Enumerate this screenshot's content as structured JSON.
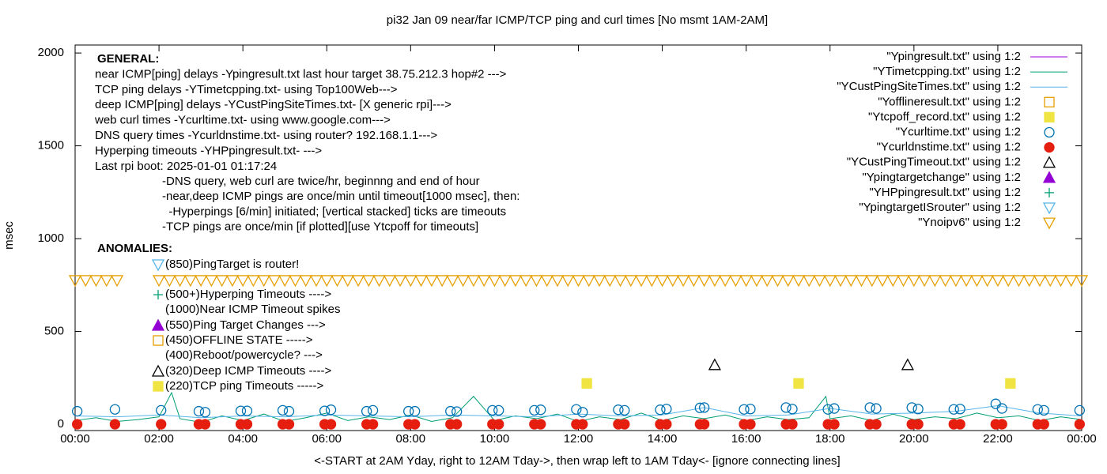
{
  "chart_data": {
    "type": "scatter",
    "title": "pi32 Jan 09  near/far ICMP/TCP ping and curl times [No msmt 1AM-2AM]",
    "xlabel": "<-START at 2AM Yday, right to 12AM Tday->, then wrap left to 1AM Tday<- [ignore connecting lines]",
    "ylabel": "msec",
    "xlim": [
      0,
      24
    ],
    "ylim": [
      -34,
      2043
    ],
    "xticks": [
      {
        "value": 0,
        "label": "00:00"
      },
      {
        "value": 2,
        "label": "02:00"
      },
      {
        "value": 4,
        "label": "04:00"
      },
      {
        "value": 6,
        "label": "06:00"
      },
      {
        "value": 8,
        "label": "08:00"
      },
      {
        "value": 10,
        "label": "10:00"
      },
      {
        "value": 12,
        "label": "12:00"
      },
      {
        "value": 14,
        "label": "14:00"
      },
      {
        "value": 16,
        "label": "16:00"
      },
      {
        "value": 18,
        "label": "18:00"
      },
      {
        "value": 20,
        "label": "20:00"
      },
      {
        "value": 22,
        "label": "22:00"
      },
      {
        "value": 24,
        "label": "00:00"
      }
    ],
    "yticks": [
      0,
      500,
      1000,
      1500,
      2000
    ],
    "annotations": {
      "general": [
        "GENERAL:",
        "near ICMP[ping] delays -Ypingresult.txt last hour target 38.75.212.3 hop#2 --->",
        "TCP ping delays -YTimetcpping.txt- using Top100Web--->",
        "deep ICMP[ping] delays -YCustPingSiteTimes.txt- [X generic rpi]--->",
        "web curl times -Ycurltime.txt- using www.google.com--->",
        "DNS query times -Ycurldnstime.txt- using router? 192.168.1.1--->",
        "Hyperping timeouts -YHPpingresult.txt- --->",
        "Last rpi boot: 2025-01-01 01:17:24"
      ],
      "notes": [
        "-DNS query, web curl are twice/hr, beginnng and end of hour",
        "-near,deep ICMP pings are once/min until timeout[1000 msec], then:",
        "  -Hyperpings [6/min] initiated; [vertical stacked] ticks are timeouts",
        "-TCP pings are once/min [if plotted][use Ytcpoff for timeouts]"
      ],
      "anomalies_title": "ANOMALIES:",
      "anomalies": [
        "(850)PingTarget is router!",
        "(500+)Hyperping Timeouts ---->",
        "(1000)Near ICMP Timeout spikes",
        "(550)Ping Target Changes --->",
        "(450)OFFLINE STATE ----->",
        "(400)Reboot/powercycle? --->",
        "(320)Deep ICMP Timeouts ---->",
        "(220)TCP ping Timeouts ----->"
      ]
    },
    "series": [
      {
        "name": "\"Ypingresult.txt\" using 1:2",
        "color": "#9400d3",
        "style": "line",
        "x": [],
        "values": []
      },
      {
        "name": "\"YTimetcpping.txt\" using 1:2",
        "color": "#009e73",
        "style": "line",
        "x": [
          0,
          0.5,
          1,
          1.5,
          2,
          2.3,
          2.5,
          3,
          3.5,
          4,
          4.5,
          5,
          5.5,
          6,
          6.5,
          7,
          7.5,
          8,
          8.5,
          9,
          9.5,
          10,
          10.5,
          11,
          11.5,
          12,
          12.5,
          13,
          13.5,
          14,
          14.5,
          15,
          15.5,
          16,
          16.5,
          17,
          17.5,
          17.9,
          18,
          18.5,
          19,
          19.5,
          20,
          20.5,
          21,
          21.5,
          22,
          22.5,
          23,
          23.5,
          24
        ],
        "values": [
          20,
          35,
          15,
          25,
          40,
          170,
          30,
          10,
          45,
          20,
          55,
          15,
          35,
          60,
          20,
          40,
          25,
          50,
          15,
          35,
          150,
          20,
          45,
          30,
          55,
          15,
          40,
          25,
          60,
          20,
          45,
          30,
          50,
          20,
          40,
          25,
          35,
          150,
          30,
          45,
          20,
          55,
          25,
          40,
          30,
          60,
          35,
          45,
          20,
          40,
          25
        ]
      },
      {
        "name": "\"YCustPingSiteTimes.txt\" using 1:2",
        "color": "#56b4e9",
        "style": "line",
        "x": [
          0,
          1,
          2,
          3,
          4,
          5,
          6,
          7,
          8,
          9,
          10,
          11,
          12,
          13,
          14,
          15,
          16,
          17,
          18,
          19,
          20,
          21,
          22,
          23,
          24
        ],
        "values": [
          45,
          40,
          50,
          35,
          45,
          40,
          50,
          45,
          40,
          50,
          45,
          40,
          55,
          45,
          50,
          90,
          45,
          50,
          85,
          55,
          60,
          70,
          100,
          60,
          45
        ]
      },
      {
        "name": "\"Yofflineresult.txt\" using 1:2",
        "color": "#e69f00",
        "style": "square-open",
        "x": [],
        "values": []
      },
      {
        "name": "\"Ytcpoff_record.txt\" using 1:2",
        "color": "#f0e442",
        "style": "square",
        "x": [
          12.2,
          17.25,
          22.3
        ],
        "values": [
          220,
          220,
          220
        ]
      },
      {
        "name": "\"Ycurltime.txt\" using 1:2",
        "color": "#0072b2",
        "style": "circle-open",
        "x": [
          0.05,
          0.95,
          2.05,
          2.95,
          3.1,
          3.95,
          4.1,
          4.95,
          5.1,
          5.95,
          6.1,
          6.95,
          7.1,
          7.95,
          8.1,
          8.95,
          9.1,
          9.95,
          10.1,
          10.95,
          11.1,
          11.95,
          12.1,
          12.95,
          13.1,
          13.95,
          14.1,
          14.9,
          15.0,
          15.95,
          16.1,
          16.95,
          17.1,
          17.95,
          18.1,
          18.95,
          19.1,
          19.95,
          20.1,
          20.95,
          21.1,
          21.95,
          22.1,
          22.95,
          23.1,
          23.95
        ],
        "values": [
          70,
          80,
          75,
          70,
          65,
          72,
          72,
          75,
          70,
          72,
          78,
          70,
          75,
          70,
          70,
          70,
          68,
          75,
          75,
          75,
          78,
          80,
          65,
          78,
          75,
          78,
          82,
          88,
          90,
          80,
          82,
          90,
          82,
          80,
          85,
          90,
          85,
          90,
          82,
          80,
          82,
          110,
          85,
          80,
          75,
          75
        ]
      },
      {
        "name": "\"Ycurldnstime.txt\" using 1:2",
        "color": "#e51e10",
        "style": "circle",
        "x": [
          0.05,
          0.95,
          2.05,
          2.95,
          3.1,
          3.95,
          4.1,
          4.95,
          5.1,
          5.95,
          6.1,
          6.95,
          7.1,
          7.95,
          8.1,
          8.95,
          9.1,
          9.95,
          10.1,
          10.95,
          11.1,
          11.95,
          12.1,
          12.95,
          13.1,
          13.95,
          14.1,
          14.9,
          15.0,
          15.95,
          16.1,
          16.95,
          17.1,
          17.95,
          18.1,
          18.95,
          19.1,
          19.95,
          20.1,
          20.95,
          21.1,
          21.95,
          22.1,
          22.95,
          23.1,
          23.95
        ],
        "values": [
          0,
          0,
          0,
          0,
          0,
          0,
          0,
          0,
          0,
          0,
          0,
          0,
          0,
          0,
          0,
          0,
          0,
          0,
          0,
          0,
          0,
          0,
          0,
          0,
          0,
          0,
          0,
          0,
          0,
          0,
          0,
          0,
          0,
          0,
          0,
          0,
          0,
          0,
          0,
          0,
          0,
          0,
          0,
          0,
          0,
          0
        ]
      },
      {
        "name": "\"YCustPingTimeout.txt\" using 1:2",
        "color": "#000000",
        "style": "triangle-open",
        "x": [
          15.25,
          19.85
        ],
        "values": [
          320,
          320
        ]
      },
      {
        "name": "\"Ypingtargetchange\" using 1:2",
        "color": "#9400d3",
        "style": "triangle",
        "x": [],
        "values": []
      },
      {
        "name": "\"YHPpingresult.txt\" using 1:2",
        "color": "#009e73",
        "style": "plus",
        "x": [],
        "values": []
      },
      {
        "name": "\"YpingtargetISrouter\" using 1:2",
        "color": "#56b4e9",
        "style": "triangle-down-open",
        "x": [],
        "values": []
      },
      {
        "name": "\"Ynoipv6\" using 1:2",
        "color": "#e69f00",
        "style": "triangle-down-open",
        "x": [
          0,
          0.25,
          0.5,
          0.75,
          1,
          2,
          2.25,
          2.5,
          2.75,
          3,
          3.25,
          3.5,
          3.75,
          4,
          4.25,
          4.5,
          4.75,
          5,
          5.25,
          5.5,
          5.75,
          6,
          6.25,
          6.5,
          6.75,
          7,
          7.25,
          7.5,
          7.75,
          8,
          8.25,
          8.5,
          8.75,
          9,
          9.25,
          9.5,
          9.75,
          10,
          10.25,
          10.5,
          10.75,
          11,
          11.25,
          11.5,
          11.75,
          12,
          12.25,
          12.5,
          12.75,
          13,
          13.25,
          13.5,
          13.75,
          14,
          14.25,
          14.5,
          14.75,
          15,
          15.25,
          15.5,
          15.75,
          16,
          16.25,
          16.5,
          16.75,
          17,
          17.25,
          17.5,
          17.75,
          18,
          18.25,
          18.5,
          18.75,
          19,
          19.25,
          19.5,
          19.75,
          20,
          20.25,
          20.5,
          20.75,
          21,
          21.25,
          21.5,
          21.75,
          22,
          22.25,
          22.5,
          22.75,
          23,
          23.25,
          23.5,
          23.75,
          24
        ],
        "values": [
          775,
          775,
          775,
          775,
          775,
          775,
          775,
          775,
          775,
          775,
          775,
          775,
          775,
          775,
          775,
          775,
          775,
          775,
          775,
          775,
          775,
          775,
          775,
          775,
          775,
          775,
          775,
          775,
          775,
          775,
          775,
          775,
          775,
          775,
          775,
          775,
          775,
          775,
          775,
          775,
          775,
          775,
          775,
          775,
          775,
          775,
          775,
          775,
          775,
          775,
          775,
          775,
          775,
          775,
          775,
          775,
          775,
          775,
          775,
          775,
          775,
          775,
          775,
          775,
          775,
          775,
          775,
          775,
          775,
          775,
          775,
          775,
          775,
          775,
          775,
          775,
          775,
          775,
          775,
          775,
          775,
          775,
          775,
          775,
          775,
          775,
          775,
          775,
          775,
          775,
          775,
          775,
          775,
          775
        ]
      }
    ]
  }
}
